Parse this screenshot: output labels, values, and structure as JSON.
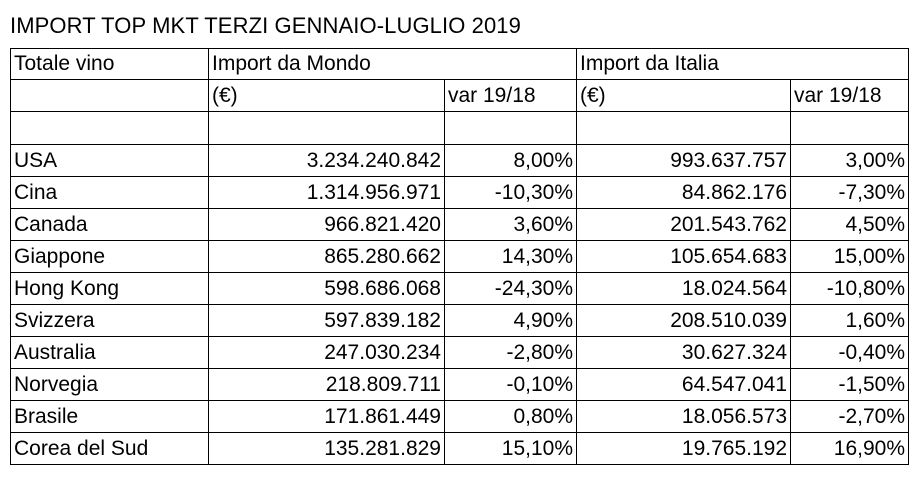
{
  "title": "IMPORT TOP MKT TERZI GENNAIO-LUGLIO 2019",
  "header": {
    "col1": "Totale vino",
    "group_world": "Import da Mondo",
    "group_italy": "Import da Italia"
  },
  "units": {
    "world_value": "(€)",
    "world_var": "var 19/18",
    "italy_value": "(€)",
    "italy_var": "var 19/18"
  },
  "rows": [
    {
      "country": "USA",
      "world_value": "3.234.240.842",
      "world_var": "8,00%",
      "italy_value": "993.637.757",
      "italy_var": "3,00%"
    },
    {
      "country": "Cina",
      "world_value": "1.314.956.971",
      "world_var": "-10,30%",
      "italy_value": "84.862.176",
      "italy_var": "-7,30%"
    },
    {
      "country": "Canada",
      "world_value": "966.821.420",
      "world_var": "3,60%",
      "italy_value": "201.543.762",
      "italy_var": "4,50%"
    },
    {
      "country": "Giappone",
      "world_value": "865.280.662",
      "world_var": "14,30%",
      "italy_value": "105.654.683",
      "italy_var": "15,00%"
    },
    {
      "country": "Hong Kong",
      "world_value": "598.686.068",
      "world_var": "-24,30%",
      "italy_value": "18.024.564",
      "italy_var": "-10,80%"
    },
    {
      "country": "Svizzera",
      "world_value": "597.839.182",
      "world_var": "4,90%",
      "italy_value": "208.510.039",
      "italy_var": "1,60%"
    },
    {
      "country": "Australia",
      "world_value": "247.030.234",
      "world_var": "-2,80%",
      "italy_value": "30.627.324",
      "italy_var": "-0,40%"
    },
    {
      "country": "Norvegia",
      "world_value": "218.809.711",
      "world_var": "-0,10%",
      "italy_value": "64.547.041",
      "italy_var": "-1,50%"
    },
    {
      "country": "Brasile",
      "world_value": "171.861.449",
      "world_var": "0,80%",
      "italy_value": "18.056.573",
      "italy_var": "-2,70%"
    },
    {
      "country": "Corea del Sud",
      "world_value": "135.281.829",
      "world_var": "15,10%",
      "italy_value": "19.765.192",
      "italy_var": "16,90%"
    }
  ]
}
